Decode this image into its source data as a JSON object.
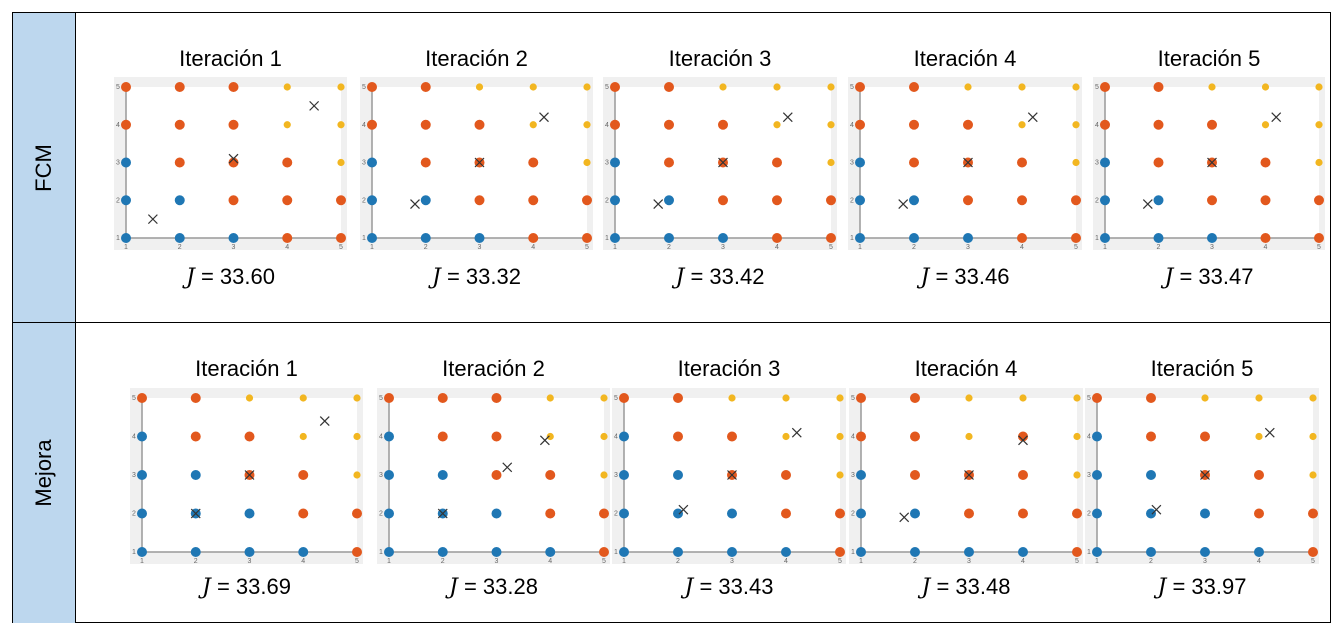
{
  "rows": [
    {
      "label": "FCM",
      "panels": [
        {
          "title": "Iteración 1",
          "j_label": "J",
          "j_value": "= 33.60"
        },
        {
          "title": "Iteración 2",
          "j_label": "J",
          "j_value": "= 33.32"
        },
        {
          "title": "Iteración 3",
          "j_label": "J",
          "j_value": "= 33.42"
        },
        {
          "title": "Iteración 4",
          "j_label": "J",
          "j_value": "= 33.46"
        },
        {
          "title": "Iteración 5",
          "j_label": "J",
          "j_value": "= 33.47"
        }
      ]
    },
    {
      "label": "Mejora",
      "panels": [
        {
          "title": "Iteración 1",
          "j_label": "J",
          "j_value": "= 33.69"
        },
        {
          "title": "Iteración 2",
          "j_label": "J",
          "j_value": "= 33.28"
        },
        {
          "title": "Iteración 3",
          "j_label": "J",
          "j_value": "= 33.43"
        },
        {
          "title": "Iteración 4",
          "j_label": "J",
          "j_value": "= 33.48"
        },
        {
          "title": "Iteración 5",
          "j_label": "J",
          "j_value": "= 33.97"
        }
      ]
    }
  ],
  "colors": {
    "blue": "#1f77b4",
    "orange": "#e2581d",
    "yellow": "#f2b620",
    "row_label_bg": "#bdd7ee",
    "plot_bg": "#f0f0f0"
  },
  "chart_data": [
    {
      "type": "scatter",
      "xlim": [
        1,
        5
      ],
      "ylim": [
        1,
        5
      ],
      "xticks": [
        "1",
        "2",
        "3",
        "4",
        "5"
      ],
      "yticks": [
        "1",
        "2",
        "3",
        "4",
        "5"
      ],
      "cluster_grid": [
        "OOOYY",
        "OOOYY",
        "BOOOY",
        "BBOOO",
        "BBBOO"
      ],
      "centroids": [
        {
          "x": 4.5,
          "y": 4.5
        },
        {
          "x": 3.0,
          "y": 3.1
        },
        {
          "x": 1.5,
          "y": 1.5
        }
      ]
    },
    {
      "type": "scatter",
      "xlim": [
        1,
        5
      ],
      "ylim": [
        1,
        5
      ],
      "xticks": [
        "1",
        "2",
        "3",
        "4",
        "5"
      ],
      "yticks": [
        "1",
        "2",
        "3",
        "4",
        "5"
      ],
      "cluster_grid": [
        "OOYYY",
        "OOOYY",
        "BOOOY",
        "BBOOO",
        "BBBOO"
      ],
      "centroids": [
        {
          "x": 4.2,
          "y": 4.2
        },
        {
          "x": 3.0,
          "y": 3.0
        },
        {
          "x": 1.8,
          "y": 1.9
        }
      ]
    },
    {
      "type": "scatter",
      "xlim": [
        1,
        5
      ],
      "ylim": [
        1,
        5
      ],
      "xticks": [
        "1",
        "2",
        "3",
        "4",
        "5"
      ],
      "yticks": [
        "1",
        "2",
        "3",
        "4",
        "5"
      ],
      "cluster_grid": [
        "OOYYY",
        "OOOYY",
        "BOOOY",
        "BBOOO",
        "BBBOO"
      ],
      "centroids": [
        {
          "x": 4.2,
          "y": 4.2
        },
        {
          "x": 3.0,
          "y": 3.0
        },
        {
          "x": 1.8,
          "y": 1.9
        }
      ]
    },
    {
      "type": "scatter",
      "xlim": [
        1,
        5
      ],
      "ylim": [
        1,
        5
      ],
      "xticks": [
        "1",
        "2",
        "3",
        "4",
        "5"
      ],
      "yticks": [
        "1",
        "2",
        "3",
        "4",
        "5"
      ],
      "cluster_grid": [
        "OOYYY",
        "OOOYY",
        "BOOOY",
        "BBOOO",
        "BBBOO"
      ],
      "centroids": [
        {
          "x": 4.2,
          "y": 4.2
        },
        {
          "x": 3.0,
          "y": 3.0
        },
        {
          "x": 1.8,
          "y": 1.9
        }
      ]
    },
    {
      "type": "scatter",
      "xlim": [
        1,
        5
      ],
      "ylim": [
        1,
        5
      ],
      "xticks": [
        "1",
        "2",
        "3",
        "4",
        "5"
      ],
      "yticks": [
        "1",
        "2",
        "3",
        "4",
        "5"
      ],
      "cluster_grid": [
        "OOYYY",
        "OOOYY",
        "BOOOY",
        "BBOOO",
        "BBBOO"
      ],
      "centroids": [
        {
          "x": 4.2,
          "y": 4.2
        },
        {
          "x": 3.0,
          "y": 3.0
        },
        {
          "x": 1.8,
          "y": 1.9
        }
      ]
    },
    {
      "type": "scatter",
      "xlim": [
        1,
        5
      ],
      "ylim": [
        1,
        5
      ],
      "xticks": [
        "1",
        "2",
        "3",
        "4",
        "5"
      ],
      "yticks": [
        "1",
        "2",
        "3",
        "4",
        "5"
      ],
      "cluster_grid": [
        "OOYYY",
        "BOOYY",
        "BBOOY",
        "BBBOO",
        "BBBBO"
      ],
      "centroids": [
        {
          "x": 4.4,
          "y": 4.4
        },
        {
          "x": 3.0,
          "y": 3.0
        },
        {
          "x": 2.0,
          "y": 2.0
        }
      ]
    },
    {
      "type": "scatter",
      "xlim": [
        1,
        5
      ],
      "ylim": [
        1,
        5
      ],
      "xticks": [
        "1",
        "2",
        "3",
        "4",
        "5"
      ],
      "yticks": [
        "1",
        "2",
        "3",
        "4",
        "5"
      ],
      "cluster_grid": [
        "OOOYY",
        "BOOYY",
        "BBOOY",
        "BBBOO",
        "BBBBO"
      ],
      "centroids": [
        {
          "x": 3.9,
          "y": 3.9
        },
        {
          "x": 3.2,
          "y": 3.2
        },
        {
          "x": 2.0,
          "y": 2.0
        }
      ]
    },
    {
      "type": "scatter",
      "xlim": [
        1,
        5
      ],
      "ylim": [
        1,
        5
      ],
      "xticks": [
        "1",
        "2",
        "3",
        "4",
        "5"
      ],
      "yticks": [
        "1",
        "2",
        "3",
        "4",
        "5"
      ],
      "cluster_grid": [
        "OOYYY",
        "BOOYY",
        "BBOOY",
        "BBBOO",
        "BBBBO"
      ],
      "centroids": [
        {
          "x": 4.2,
          "y": 4.1
        },
        {
          "x": 3.0,
          "y": 3.0
        },
        {
          "x": 2.1,
          "y": 2.1
        }
      ]
    },
    {
      "type": "scatter",
      "xlim": [
        1,
        5
      ],
      "ylim": [
        1,
        5
      ],
      "xticks": [
        "1",
        "2",
        "3",
        "4",
        "5"
      ],
      "yticks": [
        "1",
        "2",
        "3",
        "4",
        "5"
      ],
      "cluster_grid": [
        "OOYYY",
        "OOYOY",
        "BOOOY",
        "BBOOO",
        "BBBBO"
      ],
      "centroids": [
        {
          "x": 4.0,
          "y": 3.9
        },
        {
          "x": 3.0,
          "y": 3.0
        },
        {
          "x": 1.8,
          "y": 1.9
        }
      ]
    },
    {
      "type": "scatter",
      "xlim": [
        1,
        5
      ],
      "ylim": [
        1,
        5
      ],
      "xticks": [
        "1",
        "2",
        "3",
        "4",
        "5"
      ],
      "yticks": [
        "1",
        "2",
        "3",
        "4",
        "5"
      ],
      "cluster_grid": [
        "OOYYY",
        "BOOYY",
        "BBOOY",
        "BBBOO",
        "BBBBO"
      ],
      "centroids": [
        {
          "x": 4.2,
          "y": 4.1
        },
        {
          "x": 3.0,
          "y": 3.0
        },
        {
          "x": 2.1,
          "y": 2.1
        }
      ]
    }
  ]
}
